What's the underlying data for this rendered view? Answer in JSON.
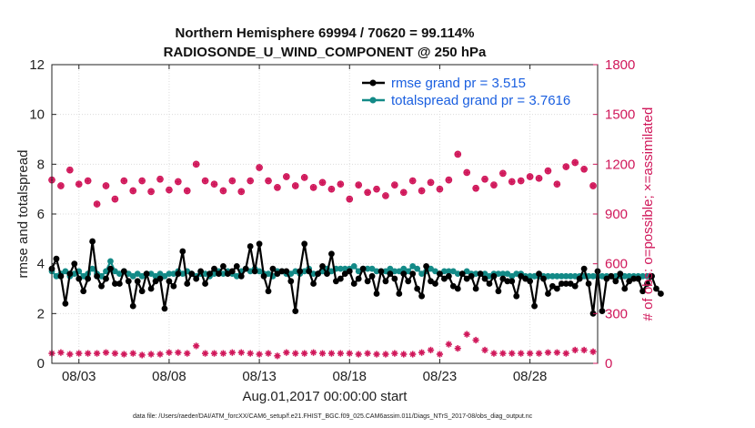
{
  "header": {
    "title_line1": "Northern Hemisphere 69994 / 70620 = 99.114%",
    "title_line2": "RADIOSONDE_U_WIND_COMPONENT @ 250 hPa"
  },
  "footer": {
    "datafile": "data file: /Users/raeder/DAI/ATM_forcXX/CAM6_setup/f.e21.FHIST_BGC.f09_025.CAM6assim.011/Diags_NTrS_2017-08/obs_diag_output.nc"
  },
  "colors": {
    "rmse": "#000000",
    "spread": "#138a87",
    "obs": "#d0175a",
    "legend_text": "#1a5fe0"
  },
  "chart_data": {
    "type": "line",
    "title": "Northern Hemisphere 69994 / 70620 = 99.114%",
    "subtitle": "RADIOSONDE_U_WIND_COMPONENT @ 250 hPa",
    "xlabel": "Aug.01,2017 00:00:00 start",
    "ylabel": "rmse and totalspread",
    "y2label": "# of obs: o=possible; ×=assimilated",
    "x_start_day": 1.5,
    "x_step_days": 0.25,
    "xlim": [
      1.5,
      31.75
    ],
    "ylim": [
      0,
      12
    ],
    "y2lim": [
      0,
      1800
    ],
    "x_ticks": [
      3,
      8,
      13,
      18,
      23,
      28
    ],
    "x_tick_labels": [
      "08/03",
      "08/08",
      "08/13",
      "08/18",
      "08/23",
      "08/28"
    ],
    "y_ticks": [
      "0",
      "2",
      "4",
      "6",
      "8",
      "10",
      "12"
    ],
    "y2_ticks": [
      "0",
      "300",
      "600",
      "900",
      "1200",
      "1500",
      "1800"
    ],
    "legend": [
      "rmse grand pr = 3.515",
      "totalspread grand pr = 3.7616"
    ],
    "series": [
      {
        "name": "rmse",
        "axis": "left",
        "values": [
          3.8,
          4.2,
          3.5,
          2.4,
          3.6,
          4.0,
          3.4,
          2.9,
          3.4,
          4.9,
          3.5,
          3.1,
          3.4,
          3.8,
          3.2,
          3.2,
          3.7,
          3.3,
          2.3,
          3.3,
          2.9,
          3.6,
          3.0,
          3.3,
          3.4,
          2.2,
          3.3,
          3.1,
          3.6,
          4.5,
          3.2,
          3.6,
          3.4,
          3.7,
          3.2,
          3.6,
          3.8,
          3.6,
          3.9,
          3.6,
          3.7,
          3.9,
          3.5,
          3.8,
          4.7,
          3.7,
          4.8,
          3.5,
          2.9,
          3.8,
          3.6,
          3.7,
          3.7,
          3.3,
          2.1,
          3.7,
          4.8,
          3.7,
          3.2,
          3.6,
          3.9,
          3.6,
          4.4,
          3.3,
          3.4,
          3.6,
          3.7,
          3.2,
          3.4,
          3.8,
          3.3,
          3.5,
          2.8,
          3.7,
          3.3,
          3.6,
          3.4,
          2.8,
          3.6,
          3.3,
          3.6,
          3.0,
          2.7,
          3.9,
          3.3,
          3.2,
          3.6,
          3.4,
          3.5,
          3.1,
          3.0,
          3.6,
          3.4,
          3.5,
          3.0,
          3.6,
          3.4,
          3.2,
          3.5,
          2.9,
          3.4,
          3.3,
          3.3,
          2.7,
          3.5,
          3.4,
          3.3,
          2.3,
          3.6,
          3.4,
          2.8,
          3.1,
          3.0,
          3.2,
          3.2,
          3.2,
          3.1,
          3.4,
          3.8,
          3.2,
          2.0,
          3.7,
          2.1,
          3.4,
          3.5,
          3.3,
          3.6,
          3.0,
          3.3,
          3.4,
          3.4,
          2.9,
          3.2,
          3.5,
          3.0,
          2.8
        ]
      },
      {
        "name": "totalspread",
        "axis": "left",
        "values": [
          3.7,
          3.5,
          3.6,
          3.7,
          3.5,
          3.6,
          3.7,
          3.5,
          3.6,
          3.8,
          3.6,
          3.5,
          3.7,
          4.1,
          3.7,
          3.6,
          3.7,
          3.6,
          3.5,
          3.6,
          3.5,
          3.6,
          3.6,
          3.5,
          3.6,
          3.5,
          3.6,
          3.6,
          3.7,
          3.6,
          3.7,
          3.6,
          3.5,
          3.6,
          3.6,
          3.5,
          3.6,
          3.7,
          3.6,
          3.7,
          3.6,
          3.5,
          3.7,
          3.8,
          3.7,
          3.8,
          3.7,
          3.6,
          3.6,
          3.5,
          3.7,
          3.7,
          3.6,
          3.6,
          3.7,
          3.6,
          3.7,
          3.8,
          3.6,
          3.6,
          3.7,
          3.8,
          3.7,
          3.8,
          3.8,
          3.8,
          3.8,
          3.9,
          3.7,
          3.8,
          3.8,
          3.8,
          3.7,
          3.7,
          3.7,
          3.8,
          3.7,
          3.7,
          3.8,
          3.7,
          3.9,
          3.8,
          3.6,
          3.7,
          3.8,
          3.7,
          3.6,
          3.7,
          3.7,
          3.7,
          3.6,
          3.6,
          3.7,
          3.6,
          3.6,
          3.6,
          3.6,
          3.5,
          3.6,
          3.6,
          3.6,
          3.6,
          3.5,
          3.6,
          3.6,
          3.5,
          3.5,
          3.5,
          3.5,
          3.5,
          3.5,
          3.5,
          3.5,
          3.5,
          3.5,
          3.5,
          3.5,
          3.5,
          3.5,
          3.5,
          3.5,
          3.5,
          3.5,
          3.5,
          3.5,
          3.5,
          3.5,
          3.5,
          3.5,
          3.5,
          3.5,
          3.5,
          3.5,
          3.5
        ]
      },
      {
        "name": "obs possible",
        "axis": "right",
        "x": [
          1.5,
          2.0,
          2.5,
          3.0,
          3.5,
          4.0,
          4.5,
          5.0,
          5.5,
          6.0,
          6.5,
          7.0,
          7.5,
          8.0,
          8.5,
          9.0,
          9.5,
          10.0,
          10.5,
          11.0,
          11.5,
          12.0,
          12.5,
          13.0,
          13.5,
          14.0,
          14.5,
          15.0,
          15.5,
          16.0,
          16.5,
          17.0,
          17.5,
          18.0,
          18.5,
          19.0,
          19.5,
          20.0,
          20.5,
          21.0,
          21.5,
          22.0,
          22.5,
          23.0,
          23.5,
          24.0,
          24.5,
          25.0,
          25.5,
          26.0,
          26.5,
          27.0,
          27.5,
          28.0,
          28.5,
          29.0,
          29.5,
          30.0,
          30.5,
          31.0,
          31.5
        ],
        "values": [
          1105,
          1070,
          1165,
          1080,
          1100,
          960,
          1070,
          990,
          1100,
          1040,
          1100,
          1035,
          1110,
          1045,
          1095,
          1040,
          1200,
          1100,
          1080,
          1040,
          1100,
          1035,
          1100,
          1180,
          1100,
          1060,
          1125,
          1070,
          1120,
          1060,
          1090,
          1050,
          1080,
          990,
          1075,
          1030,
          1050,
          1010,
          1075,
          1030,
          1100,
          1040,
          1090,
          1050,
          1105,
          1260,
          1150,
          1055,
          1110,
          1075,
          1145,
          1095,
          1100,
          1125,
          1115,
          1160,
          1080,
          1185,
          1210,
          1170,
          1070
        ]
      },
      {
        "name": "obs assimilated",
        "axis": "right",
        "x": [
          1.5,
          2.0,
          2.5,
          3.0,
          3.5,
          4.0,
          4.5,
          5.0,
          5.5,
          6.0,
          6.5,
          7.0,
          7.5,
          8.0,
          8.5,
          9.0,
          9.5,
          10.0,
          10.5,
          11.0,
          11.5,
          12.0,
          12.5,
          13.0,
          13.5,
          14.0,
          14.5,
          15.0,
          15.5,
          16.0,
          16.5,
          17.0,
          17.5,
          18.0,
          18.5,
          19.0,
          19.5,
          20.0,
          20.5,
          21.0,
          21.5,
          22.0,
          22.5,
          23.0,
          23.5,
          24.0,
          24.5,
          25.0,
          25.5,
          26.0,
          26.5,
          27.0,
          27.5,
          28.0,
          28.5,
          29.0,
          29.5,
          30.0,
          30.5,
          31.0,
          31.5
        ],
        "values": [
          60,
          65,
          55,
          60,
          60,
          60,
          65,
          60,
          55,
          60,
          50,
          55,
          55,
          65,
          65,
          60,
          105,
          60,
          60,
          60,
          65,
          65,
          60,
          55,
          60,
          45,
          65,
          60,
          60,
          65,
          60,
          60,
          60,
          60,
          55,
          60,
          55,
          55,
          60,
          55,
          55,
          65,
          80,
          55,
          115,
          90,
          175,
          140,
          80,
          60,
          60,
          60,
          60,
          60,
          60,
          65,
          65,
          60,
          80,
          80,
          70
        ]
      }
    ]
  }
}
